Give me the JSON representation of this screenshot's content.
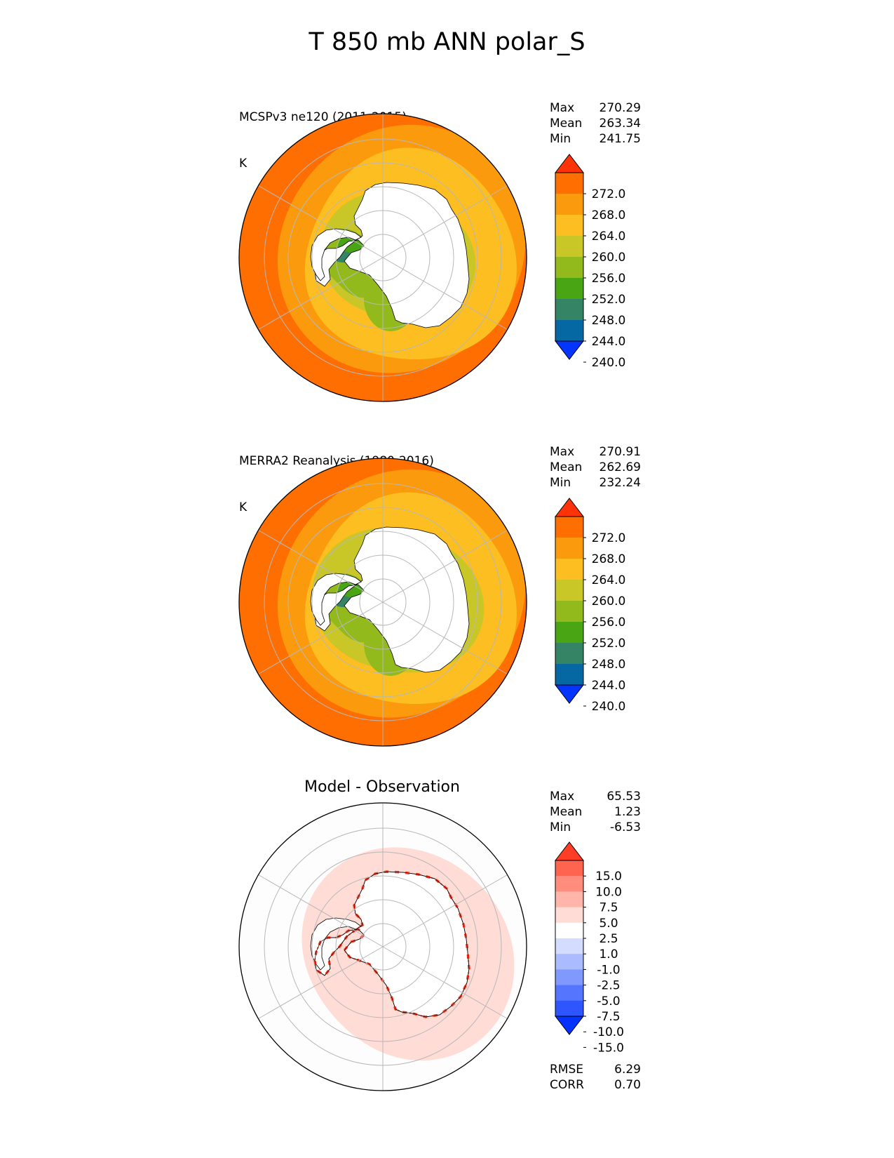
{
  "figure": {
    "title": "T 850 mb ANN polar_S"
  },
  "colors": {
    "temp_levels": [
      "#0435ff",
      "#0568a3",
      "#358466",
      "#49a514",
      "#93ba1d",
      "#c9c628",
      "#fdbe21",
      "#fc9a0d",
      "#fe6e01",
      "#ff3308"
    ],
    "diff_levels": [
      "#0433ff",
      "#2f55ff",
      "#5575ff",
      "#8099ff",
      "#aabbff",
      "#d4ddff",
      "#ffffff",
      "#ffdcd6",
      "#ffb5a9",
      "#ff8c7c",
      "#ff6451",
      "#ff3d26"
    ],
    "grid": "#b8b8b8",
    "land": "#ffffff",
    "coast": "#000000"
  },
  "panels": [
    {
      "id": "test",
      "title": "MCSPv3 ne120 (2011-2015)",
      "units": "K",
      "stats": {
        "max_label": "Max",
        "max": "270.29",
        "mean_label": "Mean",
        "mean": "263.34",
        "min_label": "Min",
        "min": "241.75"
      },
      "colorbar_ticks": [
        "272.0",
        "268.0",
        "264.0",
        "260.0",
        "256.0",
        "252.0",
        "248.0",
        "244.0",
        "240.0"
      ]
    },
    {
      "id": "reference",
      "title": "MERRA2 Reanalysis (1980-2016)",
      "units": "K",
      "stats": {
        "max_label": "Max",
        "max": "270.91",
        "mean_label": "Mean",
        "mean": "262.69",
        "min_label": "Min",
        "min": "232.24"
      },
      "colorbar_ticks": [
        "272.0",
        "268.0",
        "264.0",
        "260.0",
        "256.0",
        "252.0",
        "248.0",
        "244.0",
        "240.0"
      ]
    },
    {
      "id": "diff",
      "title": "Model - Observation",
      "stats": {
        "max_label": "Max",
        "max": "65.53",
        "mean_label": "Mean",
        "mean": "1.23",
        "min_label": "Min",
        "min": "-6.53"
      },
      "colorbar_ticks": [
        "15.0",
        "10.0",
        "7.5",
        "5.0",
        "2.5",
        "1.0",
        "-1.0",
        "-2.5",
        "-5.0",
        "-7.5",
        "-10.0",
        "-15.0"
      ],
      "metrics": {
        "rmse_label": "RMSE",
        "rmse": "6.29",
        "corr_label": "CORR",
        "corr": "0.70"
      }
    }
  ],
  "chart_data": [
    {
      "type": "heatmap",
      "projection": "south polar stereographic",
      "title": "MCSPv3 ne120 (2011-2015)",
      "units": "K",
      "max": 270.29,
      "mean": 263.34,
      "min": 241.75,
      "levels": [
        240,
        244,
        248,
        252,
        256,
        260,
        264,
        268,
        272
      ],
      "extend": "both",
      "grid": true
    },
    {
      "type": "heatmap",
      "projection": "south polar stereographic",
      "title": "MERRA2 Reanalysis (1980-2016)",
      "units": "K",
      "max": 270.91,
      "mean": 262.69,
      "min": 232.24,
      "levels": [
        240,
        244,
        248,
        252,
        256,
        260,
        264,
        268,
        272
      ],
      "extend": "both",
      "grid": true
    },
    {
      "type": "heatmap",
      "projection": "south polar stereographic",
      "title": "Model - Observation",
      "max": 65.53,
      "mean": 1.23,
      "min": -6.53,
      "rmse": 6.29,
      "corr": 0.7,
      "levels": [
        -15,
        -10,
        -7.5,
        -5,
        -2.5,
        -1,
        1,
        2.5,
        5,
        7.5,
        10,
        15
      ],
      "extend": "both",
      "grid": true
    }
  ]
}
